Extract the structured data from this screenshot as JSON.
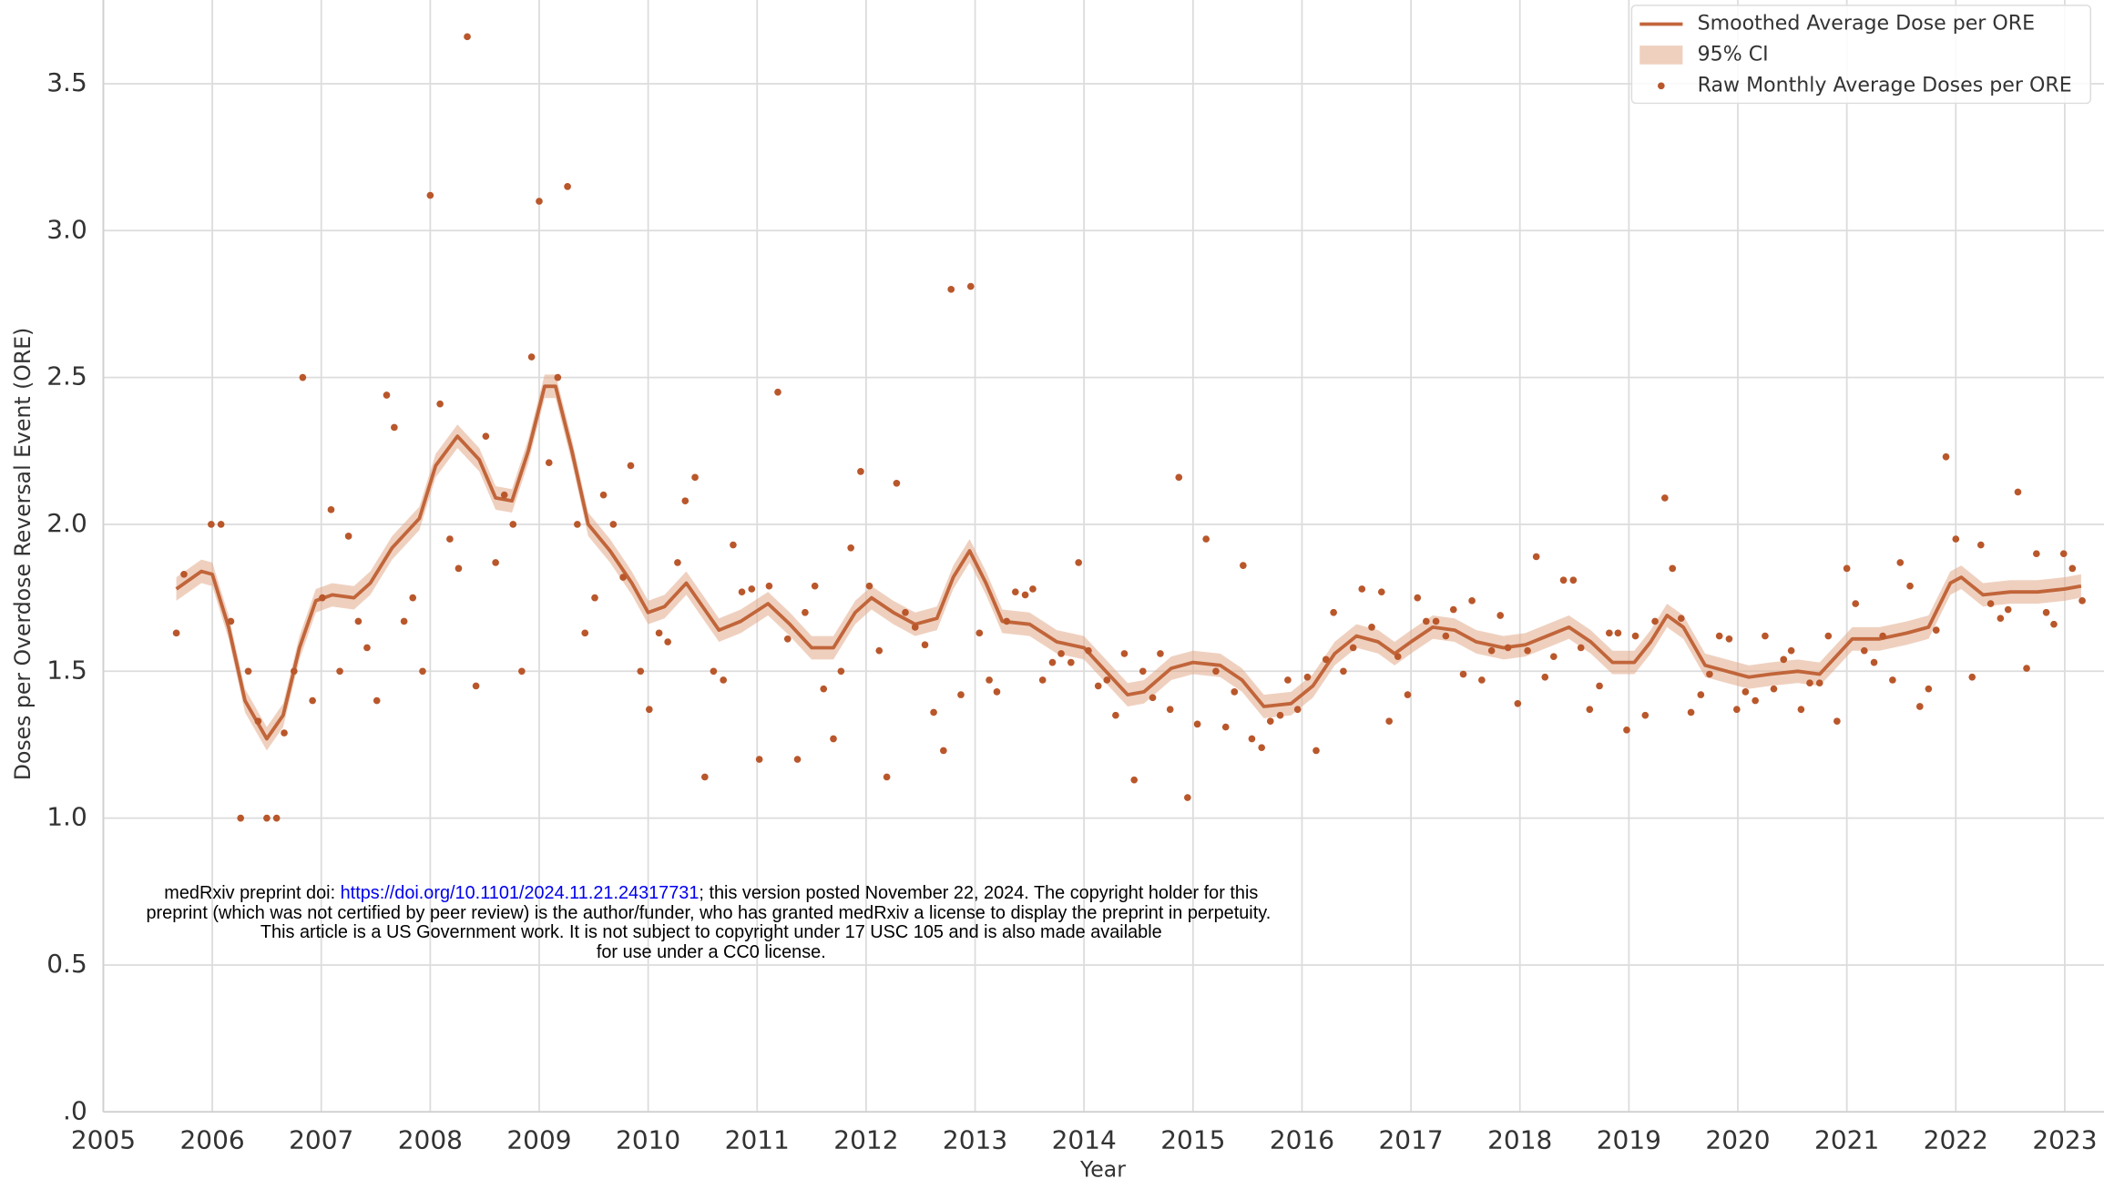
{
  "chart_data": {
    "type": "line",
    "x_label": "Year",
    "y_label": "Doses per Overdose Reversal Event (ORE)",
    "xlim": [
      2005,
      2023.36
    ],
    "xticks": [
      2005,
      2006,
      2007,
      2008,
      2009,
      2010,
      2011,
      2012,
      2013,
      2014,
      2015,
      2016,
      2017,
      2018,
      2019,
      2020,
      2021,
      2022,
      2023
    ],
    "ylim": [
      0,
      3.785
    ],
    "yticks": [
      {
        "value": 0,
        "label": ".0"
      },
      0.5,
      {
        "value": 1,
        "label": "1.0"
      },
      1.5,
      {
        "value": 2,
        "label": "2.0"
      },
      2.5,
      {
        "value": 3,
        "label": "3.0"
      },
      3.5
    ],
    "grid": true,
    "legend": "upper right",
    "series": [
      {
        "name": "Smoothed Average Dose per ORE",
        "type": "line",
        "color": "#c1653a",
        "x": [
          2005.67,
          2005.9,
          2006.0,
          2006.15,
          2006.3,
          2006.5,
          2006.65,
          2006.8,
          2006.95,
          2007.1,
          2007.3,
          2007.45,
          2007.65,
          2007.9,
          2008.05,
          2008.25,
          2008.45,
          2008.6,
          2008.75,
          2008.9,
          2009.05,
          2009.15,
          2009.3,
          2009.45,
          2009.65,
          2009.85,
          2010.0,
          2010.15,
          2010.35,
          2010.5,
          2010.65,
          2010.85,
          2011.1,
          2011.3,
          2011.5,
          2011.7,
          2011.9,
          2012.05,
          2012.25,
          2012.45,
          2012.65,
          2012.8,
          2012.95,
          2013.1,
          2013.25,
          2013.5,
          2013.75,
          2014.0,
          2014.2,
          2014.4,
          2014.55,
          2014.8,
          2015.0,
          2015.25,
          2015.45,
          2015.65,
          2015.9,
          2016.1,
          2016.3,
          2016.5,
          2016.7,
          2016.85,
          2017.0,
          2017.2,
          2017.4,
          2017.6,
          2017.85,
          2018.05,
          2018.25,
          2018.45,
          2018.65,
          2018.85,
          2019.05,
          2019.2,
          2019.35,
          2019.5,
          2019.7,
          2019.9,
          2020.1,
          2020.3,
          2020.55,
          2020.75,
          2020.9,
          2021.05,
          2021.3,
          2021.55,
          2021.75,
          2021.95,
          2022.05,
          2022.25,
          2022.5,
          2022.75,
          2023.0,
          2023.15
        ],
        "values": [
          1.78,
          1.84,
          1.83,
          1.65,
          1.4,
          1.27,
          1.35,
          1.58,
          1.74,
          1.76,
          1.75,
          1.8,
          1.92,
          2.02,
          2.2,
          2.3,
          2.22,
          2.09,
          2.08,
          2.25,
          2.47,
          2.47,
          2.25,
          2.0,
          1.91,
          1.8,
          1.7,
          1.72,
          1.8,
          1.72,
          1.64,
          1.67,
          1.73,
          1.66,
          1.58,
          1.58,
          1.7,
          1.75,
          1.7,
          1.66,
          1.68,
          1.82,
          1.91,
          1.8,
          1.67,
          1.66,
          1.6,
          1.58,
          1.5,
          1.42,
          1.43,
          1.51,
          1.53,
          1.52,
          1.47,
          1.38,
          1.39,
          1.45,
          1.56,
          1.62,
          1.6,
          1.56,
          1.6,
          1.65,
          1.64,
          1.6,
          1.58,
          1.59,
          1.62,
          1.65,
          1.6,
          1.53,
          1.53,
          1.6,
          1.69,
          1.65,
          1.52,
          1.5,
          1.48,
          1.49,
          1.5,
          1.49,
          1.55,
          1.61,
          1.61,
          1.63,
          1.65,
          1.8,
          1.82,
          1.76,
          1.77,
          1.77,
          1.78,
          1.79
        ]
      },
      {
        "name": "95% CI",
        "type": "band",
        "color": "#e2a98b",
        "lower": [
          1.74,
          1.8,
          1.79,
          1.61,
          1.36,
          1.23,
          1.31,
          1.54,
          1.7,
          1.72,
          1.71,
          1.76,
          1.88,
          1.98,
          2.16,
          2.26,
          2.18,
          2.05,
          2.04,
          2.21,
          2.43,
          2.43,
          2.21,
          1.96,
          1.87,
          1.76,
          1.66,
          1.68,
          1.76,
          1.68,
          1.6,
          1.63,
          1.69,
          1.62,
          1.54,
          1.54,
          1.66,
          1.71,
          1.66,
          1.62,
          1.64,
          1.78,
          1.87,
          1.76,
          1.63,
          1.62,
          1.56,
          1.54,
          1.46,
          1.38,
          1.39,
          1.47,
          1.49,
          1.48,
          1.43,
          1.34,
          1.35,
          1.41,
          1.52,
          1.58,
          1.56,
          1.52,
          1.56,
          1.61,
          1.6,
          1.56,
          1.54,
          1.55,
          1.58,
          1.61,
          1.56,
          1.49,
          1.49,
          1.56,
          1.65,
          1.61,
          1.48,
          1.46,
          1.44,
          1.45,
          1.46,
          1.45,
          1.51,
          1.57,
          1.57,
          1.59,
          1.61,
          1.76,
          1.78,
          1.72,
          1.73,
          1.73,
          1.74,
          1.75
        ],
        "upper": [
          1.82,
          1.88,
          1.87,
          1.69,
          1.44,
          1.31,
          1.39,
          1.62,
          1.78,
          1.8,
          1.79,
          1.84,
          1.96,
          2.06,
          2.24,
          2.34,
          2.26,
          2.13,
          2.12,
          2.29,
          2.51,
          2.51,
          2.29,
          2.04,
          1.95,
          1.84,
          1.74,
          1.76,
          1.84,
          1.76,
          1.68,
          1.71,
          1.77,
          1.7,
          1.62,
          1.62,
          1.74,
          1.79,
          1.74,
          1.7,
          1.72,
          1.86,
          1.95,
          1.84,
          1.71,
          1.7,
          1.64,
          1.62,
          1.54,
          1.46,
          1.47,
          1.55,
          1.57,
          1.56,
          1.51,
          1.42,
          1.43,
          1.49,
          1.6,
          1.66,
          1.64,
          1.6,
          1.64,
          1.69,
          1.68,
          1.64,
          1.62,
          1.63,
          1.66,
          1.69,
          1.64,
          1.57,
          1.57,
          1.64,
          1.73,
          1.69,
          1.56,
          1.54,
          1.52,
          1.53,
          1.54,
          1.53,
          1.59,
          1.65,
          1.65,
          1.67,
          1.69,
          1.84,
          1.86,
          1.8,
          1.81,
          1.81,
          1.82,
          1.83
        ]
      },
      {
        "name": "Raw Monthly Average Doses per ORE",
        "type": "scatter",
        "color": "#b9572b",
        "x": [
          2005.67,
          2005.74,
          2005.99,
          2006.08,
          2006.17,
          2006.26,
          2006.33,
          2006.42,
          2006.5,
          2006.59,
          2006.66,
          2006.75,
          2006.83,
          2006.92,
          2007.01,
          2007.09,
          2007.17,
          2007.25,
          2007.34,
          2007.42,
          2007.51,
          2007.6,
          2007.67,
          2007.76,
          2007.84,
          2007.93,
          2008.0,
          2008.09,
          2008.18,
          2008.26,
          2008.34,
          2008.42,
          2008.51,
          2008.6,
          2008.68,
          2008.76,
          2008.84,
          2008.93,
          2009.0,
          2009.09,
          2009.17,
          2009.26,
          2009.35,
          2009.42,
          2009.51,
          2009.59,
          2009.68,
          2009.77,
          2009.84,
          2009.93,
          2010.01,
          2010.1,
          2010.18,
          2010.27,
          2010.34,
          2010.43,
          2010.52,
          2010.6,
          2010.69,
          2010.78,
          2010.86,
          2010.95,
          2011.02,
          2011.11,
          2011.19,
          2011.28,
          2011.37,
          2011.44,
          2011.53,
          2011.61,
          2011.7,
          2011.77,
          2011.86,
          2011.95,
          2012.03,
          2012.12,
          2012.19,
          2012.28,
          2012.36,
          2012.45,
          2012.54,
          2012.62,
          2012.71,
          2012.78,
          2012.87,
          2012.96,
          2013.04,
          2013.13,
          2013.2,
          2013.29,
          2013.37,
          2013.46,
          2013.53,
          2013.62,
          2013.71,
          2013.79,
          2013.88,
          2013.95,
          2014.04,
          2014.13,
          2014.21,
          2014.29,
          2014.37,
          2014.46,
          2014.54,
          2014.63,
          2014.7,
          2014.79,
          2014.87,
          2014.95,
          2015.04,
          2015.12,
          2015.21,
          2015.3,
          2015.38,
          2015.46,
          2015.54,
          2015.63,
          2015.71,
          2015.8,
          2015.87,
          2015.96,
          2016.05,
          2016.13,
          2016.22,
          2016.29,
          2016.38,
          2016.47,
          2016.55,
          2016.64,
          2016.73,
          2016.8,
          2016.88,
          2016.97,
          2017.06,
          2017.14,
          2017.23,
          2017.32,
          2017.39,
          2017.48,
          2017.56,
          2017.65,
          2017.74,
          2017.82,
          2017.89,
          2017.98,
          2018.07,
          2018.15,
          2018.23,
          2018.31,
          2018.4,
          2018.49,
          2018.56,
          2018.64,
          2018.73,
          2018.82,
          2018.9,
          2018.98,
          2019.06,
          2019.15,
          2019.24,
          2019.33,
          2019.4,
          2019.48,
          2019.57,
          2019.66,
          2019.74,
          2019.83,
          2019.92,
          2019.99,
          2020.07,
          2020.16,
          2020.25,
          2020.33,
          2020.42,
          2020.49,
          2020.58,
          2020.66,
          2020.75,
          2020.83,
          2020.91,
          2021.0,
          2021.08,
          2021.16,
          2021.25,
          2021.33,
          2021.42,
          2021.49,
          2021.58,
          2021.67,
          2021.75,
          2021.82,
          2021.91,
          2022.0,
          2022.15,
          2022.23,
          2022.32,
          2022.41,
          2022.48,
          2022.57,
          2022.65,
          2022.74,
          2022.83,
          2022.9,
          2022.99,
          2023.07,
          2023.16
        ],
        "values": [
          1.63,
          1.83,
          2.0,
          2.0,
          1.67,
          1.0,
          1.5,
          1.33,
          1.0,
          1.0,
          1.29,
          1.5,
          2.5,
          1.4,
          1.75,
          2.05,
          1.5,
          1.96,
          1.67,
          1.58,
          1.4,
          2.44,
          2.33,
          1.67,
          1.75,
          1.5,
          3.12,
          2.41,
          1.95,
          1.85,
          3.66,
          1.45,
          2.3,
          1.87,
          2.1,
          2.0,
          1.5,
          2.57,
          3.1,
          2.21,
          2.5,
          3.15,
          2.0,
          1.63,
          1.75,
          2.1,
          2.0,
          1.82,
          2.2,
          1.5,
          1.37,
          1.63,
          1.6,
          1.87,
          2.08,
          2.16,
          1.14,
          1.5,
          1.47,
          1.93,
          1.77,
          1.78,
          1.2,
          1.79,
          2.45,
          1.61,
          1.2,
          1.7,
          1.79,
          1.44,
          1.27,
          1.5,
          1.92,
          2.18,
          1.79,
          1.57,
          1.14,
          2.14,
          1.7,
          1.65,
          1.59,
          1.36,
          1.23,
          2.8,
          1.42,
          2.81,
          1.63,
          1.47,
          1.43,
          1.67,
          1.77,
          1.76,
          1.78,
          1.47,
          1.53,
          1.56,
          1.53,
          1.87,
          1.57,
          1.45,
          1.47,
          1.35,
          1.56,
          1.13,
          1.5,
          1.41,
          1.56,
          1.37,
          2.16,
          1.07,
          1.32,
          1.95,
          1.5,
          1.31,
          1.43,
          1.86,
          1.27,
          1.24,
          1.33,
          1.35,
          1.47,
          1.37,
          1.48,
          1.23,
          1.54,
          1.7,
          1.5,
          1.58,
          1.78,
          1.65,
          1.77,
          1.33,
          1.55,
          1.42,
          1.75,
          1.67,
          1.67,
          1.62,
          1.71,
          1.49,
          1.74,
          1.47,
          1.57,
          1.69,
          1.58,
          1.39,
          1.57,
          1.89,
          1.48,
          1.55,
          1.81,
          1.81,
          1.58,
          1.37,
          1.45,
          1.63,
          1.63,
          1.3,
          1.62,
          1.35,
          1.67,
          2.09,
          1.85,
          1.68,
          1.36,
          1.42,
          1.49,
          1.62,
          1.61,
          1.37,
          1.43,
          1.4,
          1.62,
          1.44,
          1.54,
          1.57,
          1.37,
          1.46,
          1.46,
          1.62,
          1.33,
          1.85,
          1.73,
          1.57,
          1.53,
          1.62,
          1.47,
          1.87,
          1.79,
          1.38,
          1.44,
          1.64,
          2.23,
          1.95,
          1.48,
          1.93,
          1.73,
          1.68,
          1.71,
          2.11,
          1.51,
          1.9,
          1.7,
          1.66,
          1.9,
          1.85,
          1.74
        ]
      }
    ]
  },
  "watermark": {
    "line1_prefix": "medRxiv preprint doi: ",
    "line1_link": "https://doi.org/10.1101/2024.11.21.24317731",
    "line1_suffix": "; this version posted November 22, 2024. The copyright holder for this",
    "line2": "preprint (which was not certified by peer review) is the author/funder, who has granted medRxiv a license to display the preprint in perpetuity.",
    "line3": "This article is a US Government work. It is not subject to copyright under 17 USC 105 and is also made available",
    "line4": "for use under a CC0 license."
  }
}
